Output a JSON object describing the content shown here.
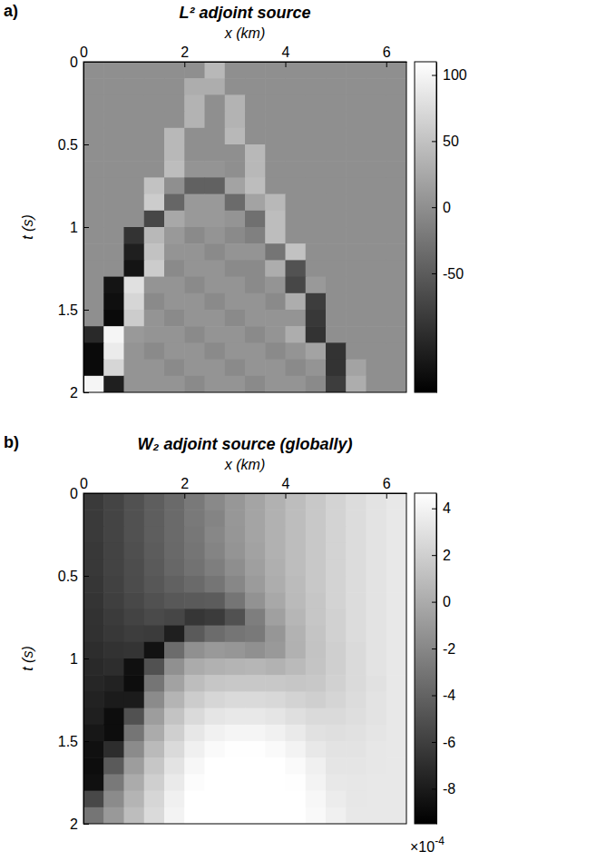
{
  "chart_data": [
    {
      "type": "heatmap",
      "panel_label": "a)",
      "title": "L² adjoint source",
      "x_label": "x (km)",
      "y_label": "t (s)",
      "xlim": [
        0,
        6.4
      ],
      "ylim": [
        0,
        2
      ],
      "xticks": [
        0,
        2,
        4,
        6
      ],
      "yticks": [
        0,
        0.5,
        1,
        1.5,
        2
      ],
      "x": [
        0.2,
        0.6,
        1.0,
        1.4,
        1.8,
        2.2,
        2.6,
        3.0,
        3.4,
        3.8,
        4.2,
        4.6,
        5.0,
        5.4,
        5.8,
        6.2
      ],
      "y": [
        0.05,
        0.15,
        0.25,
        0.35,
        0.45,
        0.55,
        0.65,
        0.75,
        0.85,
        0.95,
        1.05,
        1.15,
        1.25,
        1.35,
        1.45,
        1.55,
        1.65,
        1.75,
        1.85,
        1.95
      ],
      "z": [
        [
          0,
          0,
          0,
          0,
          0,
          0,
          40,
          0,
          0,
          0,
          0,
          0,
          0,
          0,
          0,
          0
        ],
        [
          0,
          0,
          0,
          0,
          0,
          30,
          30,
          0,
          0,
          0,
          0,
          0,
          0,
          0,
          0,
          0
        ],
        [
          0,
          0,
          0,
          0,
          0,
          35,
          0,
          35,
          0,
          0,
          0,
          0,
          0,
          0,
          0,
          0
        ],
        [
          0,
          0,
          0,
          0,
          0,
          35,
          0,
          35,
          0,
          0,
          0,
          0,
          0,
          0,
          0,
          0
        ],
        [
          0,
          0,
          0,
          0,
          40,
          0,
          0,
          40,
          0,
          0,
          0,
          0,
          0,
          0,
          0,
          0
        ],
        [
          0,
          0,
          0,
          0,
          40,
          0,
          0,
          0,
          40,
          0,
          0,
          0,
          0,
          0,
          0,
          0
        ],
        [
          0,
          0,
          0,
          0,
          45,
          5,
          5,
          0,
          40,
          0,
          0,
          0,
          0,
          0,
          0,
          0
        ],
        [
          0,
          0,
          0,
          50,
          0,
          -45,
          -45,
          20,
          45,
          0,
          0,
          0,
          0,
          0,
          0,
          0
        ],
        [
          0,
          0,
          0,
          60,
          -40,
          10,
          10,
          -35,
          20,
          40,
          0,
          0,
          0,
          0,
          0,
          0
        ],
        [
          0,
          0,
          0,
          -70,
          25,
          10,
          10,
          5,
          -30,
          45,
          0,
          0,
          0,
          0,
          0,
          0
        ],
        [
          0,
          0,
          -90,
          40,
          10,
          -5,
          5,
          -5,
          -15,
          45,
          0,
          0,
          0,
          0,
          0,
          0
        ],
        [
          0,
          0,
          -110,
          50,
          5,
          5,
          -5,
          5,
          5,
          -25,
          50,
          0,
          0,
          0,
          0,
          0
        ],
        [
          0,
          0,
          -120,
          60,
          -5,
          5,
          5,
          -5,
          -5,
          30,
          -60,
          0,
          0,
          0,
          0,
          0
        ],
        [
          0,
          -120,
          80,
          5,
          5,
          -5,
          5,
          5,
          -5,
          5,
          -70,
          10,
          0,
          0,
          0,
          0
        ],
        [
          0,
          -125,
          70,
          -5,
          5,
          5,
          -5,
          5,
          5,
          -5,
          30,
          -80,
          0,
          0,
          0,
          0
        ],
        [
          0,
          -130,
          60,
          5,
          -5,
          5,
          5,
          -5,
          5,
          5,
          5,
          -85,
          0,
          0,
          0,
          0
        ],
        [
          -100,
          100,
          10,
          5,
          5,
          -5,
          5,
          5,
          -5,
          5,
          30,
          -90,
          0,
          0,
          0,
          0
        ],
        [
          -130,
          90,
          5,
          -5,
          5,
          5,
          -5,
          5,
          5,
          -5,
          5,
          20,
          -90,
          0,
          0,
          0
        ],
        [
          -130,
          70,
          5,
          5,
          -5,
          5,
          5,
          -5,
          5,
          5,
          -5,
          5,
          -90,
          20,
          0,
          0
        ],
        [
          100,
          -110,
          5,
          5,
          5,
          -5,
          5,
          5,
          -5,
          5,
          5,
          -5,
          -80,
          30,
          0,
          0
        ]
      ],
      "colorbar_range": [
        -140,
        110
      ],
      "colorbar_ticks": [
        -50,
        0,
        50,
        100
      ]
    },
    {
      "type": "heatmap",
      "panel_label": "b)",
      "title": "W₂ adjoint source (globally)",
      "x_label": "x (km)",
      "y_label": "t (s)",
      "xlim": [
        0,
        6.4
      ],
      "ylim": [
        0,
        2
      ],
      "xticks": [
        0,
        2,
        4,
        6
      ],
      "yticks": [
        0,
        0.5,
        1,
        1.5,
        2
      ],
      "x": [
        0.2,
        0.6,
        1.0,
        1.4,
        1.8,
        2.2,
        2.6,
        3.0,
        3.4,
        3.8,
        4.2,
        4.6,
        5.0,
        5.4,
        5.8,
        6.2
      ],
      "y": [
        0.05,
        0.15,
        0.25,
        0.35,
        0.45,
        0.55,
        0.65,
        0.75,
        0.85,
        0.95,
        1.05,
        1.15,
        1.25,
        1.35,
        1.45,
        1.55,
        1.65,
        1.75,
        1.85,
        1.95
      ],
      "z": [
        [
          -0.00063,
          -0.00057,
          -0.0005,
          -0.00043,
          -0.00036,
          -0.00028,
          -0.00019,
          -0.00011,
          -4e-05,
          3e-05,
          0.0001,
          0.00016,
          0.00022,
          0.00027,
          0.00031,
          0.00034
        ],
        [
          -0.00063,
          -0.00057,
          -0.0005,
          -0.00043,
          -0.00036,
          -0.00028,
          -0.00022,
          -0.00011,
          -4e-05,
          3e-05,
          0.0001,
          0.00016,
          0.00022,
          0.00027,
          0.00031,
          0.00034
        ],
        [
          -0.00063,
          -0.00057,
          -0.0005,
          -0.00043,
          -0.00036,
          -0.00029,
          -0.0002,
          -0.00012,
          -4e-05,
          3e-05,
          0.0001,
          0.00016,
          0.00022,
          0.00027,
          0.00031,
          0.00034
        ],
        [
          -0.00064,
          -0.00058,
          -0.00051,
          -0.00044,
          -0.00037,
          -0.0003,
          -0.00022,
          -0.00013,
          -5e-05,
          3e-05,
          0.0001,
          0.00016,
          0.00022,
          0.00027,
          0.00031,
          0.00034
        ],
        [
          -0.00064,
          -0.00058,
          -0.00052,
          -0.00045,
          -0.00038,
          -0.00032,
          -0.00025,
          -0.00016,
          -7e-05,
          2e-05,
          0.0001,
          0.00016,
          0.00022,
          0.00027,
          0.00031,
          0.00034
        ],
        [
          -0.00065,
          -0.00059,
          -0.00053,
          -0.00047,
          -0.00041,
          -0.00036,
          -0.0003,
          -0.0002,
          -9e-05,
          1e-05,
          9e-05,
          0.00016,
          0.00022,
          0.00027,
          0.00031,
          0.00034
        ],
        [
          -0.00066,
          -0.0006,
          -0.00055,
          -0.0005,
          -0.00046,
          -0.00045,
          -0.00044,
          -0.0003,
          -0.00014,
          -2e-05,
          8e-05,
          0.00015,
          0.00022,
          0.00027,
          0.00031,
          0.00034
        ],
        [
          -0.00067,
          -0.00062,
          -0.00058,
          -0.00054,
          -0.00056,
          -0.00065,
          -0.00062,
          -0.0005,
          -0.00025,
          -6e-05,
          6e-05,
          0.00015,
          0.00021,
          0.00027,
          0.00031,
          0.00034
        ],
        [
          -0.00068,
          -0.00064,
          -0.00061,
          -0.00062,
          -0.00078,
          -0.00045,
          -0.00035,
          -0.0003,
          -0.00028,
          -0.00012,
          4e-05,
          0.00014,
          0.00021,
          0.00027,
          0.00031,
          0.00034
        ],
        [
          -0.0007,
          -0.00067,
          -0.00066,
          -0.00085,
          -0.00035,
          -0.00015,
          -0.0001,
          -0.00012,
          -0.00015,
          -0.0001,
          3e-05,
          0.00013,
          0.0002,
          0.00026,
          0.00031,
          0.00034
        ],
        [
          -0.00072,
          -0.0007,
          -0.00086,
          -0.0005,
          -0.00015,
          0,
          3e-05,
          5e-05,
          6e-05,
          4e-05,
          8e-05,
          0.00014,
          0.0002,
          0.00026,
          0.00031,
          0.00034
        ],
        [
          -0.00074,
          -0.00076,
          -0.00088,
          -0.0003,
          -5e-05,
          0.0001,
          0.00015,
          0.00016,
          0.00016,
          0.00016,
          0.00015,
          0.00016,
          0.00021,
          0.00026,
          0.0003,
          0.00034
        ],
        [
          -0.00076,
          -0.0008,
          -0.0008,
          -0.00018,
          5e-05,
          0.00018,
          0.00024,
          0.00026,
          0.00026,
          0.00025,
          0.00022,
          0.0002,
          0.00023,
          0.00027,
          0.00031,
          0.00034
        ],
        [
          -0.00078,
          -0.00088,
          -0.0005,
          -8e-05,
          0.00013,
          0.00026,
          0.00032,
          0.00034,
          0.00034,
          0.00032,
          0.00029,
          0.00026,
          0.00026,
          0.00028,
          0.00031,
          0.00034
        ],
        [
          -0.00082,
          -0.00088,
          -0.0003,
          0,
          0.0002,
          0.00033,
          0.00039,
          0.00041,
          0.00041,
          0.00039,
          0.00035,
          0.0003,
          0.00029,
          0.0003,
          0.00032,
          0.00034
        ],
        [
          -0.00086,
          -0.0007,
          -0.00018,
          8e-05,
          0.00026,
          0.00038,
          0.00044,
          0.00046,
          0.00046,
          0.00044,
          0.0004,
          0.00034,
          0.00031,
          0.00031,
          0.00033,
          0.00034
        ],
        [
          -0.00088,
          -0.00045,
          -8e-05,
          0.00015,
          0.00031,
          0.00042,
          0.00048,
          0.0005,
          0.0005,
          0.00048,
          0.00044,
          0.00038,
          0.00032,
          0.00032,
          0.00033,
          0.00034
        ],
        [
          -0.00086,
          -0.00028,
          0,
          0.0002,
          0.00035,
          0.00045,
          0.0005,
          0.00051,
          0.00051,
          0.0005,
          0.00046,
          0.0004,
          0.00034,
          0.00033,
          0.00034,
          0.00034
        ],
        [
          -0.00055,
          -0.00018,
          5e-05,
          0.00024,
          0.00038,
          0.00047,
          0.00051,
          0.00052,
          0.00052,
          0.0005,
          0.00047,
          0.00042,
          0.00036,
          0.00033,
          0.00034,
          0.00034
        ],
        [
          -0.0003,
          -0.0001,
          0.0001,
          0.00026,
          0.0004,
          0.00048,
          0.00051,
          0.00052,
          0.00052,
          0.0005,
          0.00047,
          0.00043,
          0.00038,
          0.00034,
          0.00034,
          0.00034
        ]
      ],
      "colorbar_range": [
        -0.00095,
        0.000465
      ],
      "colorbar_ticks": [
        {
          "value": -0.0008,
          "label": "-8"
        },
        {
          "value": -0.0006,
          "label": "-6"
        },
        {
          "value": -0.0004,
          "label": "-4"
        },
        {
          "value": -0.0002,
          "label": "-2"
        },
        {
          "value": 0,
          "label": "0"
        },
        {
          "value": 0.0002,
          "label": "2"
        },
        {
          "value": 0.0004,
          "label": "4"
        }
      ],
      "colorbar_annotation": {
        "text": "×10",
        "superscript": "-4"
      }
    }
  ]
}
